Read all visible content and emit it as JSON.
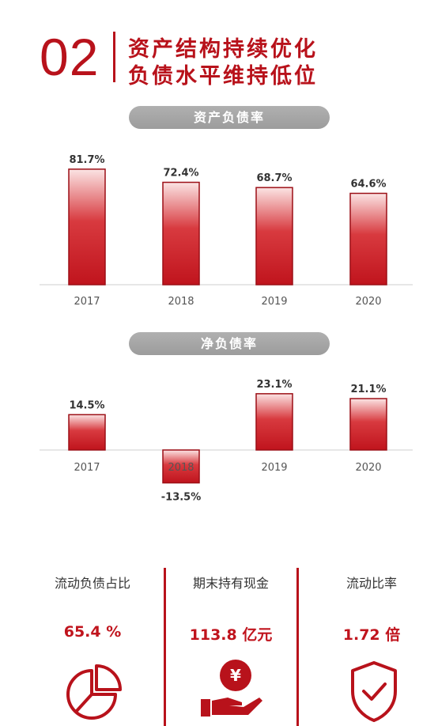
{
  "header": {
    "number": "02",
    "title_line1": "资产结构持续优化",
    "title_line2": "负债水平维持低位"
  },
  "chart_data": [
    {
      "type": "bar",
      "title": "资产负债率",
      "categories": [
        "2017",
        "2018",
        "2019",
        "2020"
      ],
      "values": [
        81.7,
        72.4,
        68.7,
        64.6
      ],
      "value_labels": [
        "81.7%",
        "72.4%",
        "68.7%",
        "64.6%"
      ],
      "ylim": [
        0,
        85
      ],
      "grid": false,
      "color": "#c0141d"
    },
    {
      "type": "bar",
      "title": "净负债率",
      "categories": [
        "2017",
        "2018",
        "2019",
        "2020"
      ],
      "values": [
        14.5,
        -13.5,
        23.1,
        21.1
      ],
      "value_labels": [
        "14.5%",
        "-13.5%",
        "23.1%",
        "21.1%"
      ],
      "ylim": [
        -15,
        25
      ],
      "grid": false,
      "color": "#c0141d"
    }
  ],
  "stats": [
    {
      "label": "流动负债占比",
      "value": "65.4 %",
      "icon": "pie-chart-icon"
    },
    {
      "label": "期末持有现金",
      "value": "113.8 亿元",
      "icon": "cash-in-hand-icon"
    },
    {
      "label": "流动比率",
      "value": "1.72 倍",
      "icon": "shield-check-icon"
    }
  ],
  "colors": {
    "brand": "#b8121b",
    "pill": "#a5a5a5"
  }
}
